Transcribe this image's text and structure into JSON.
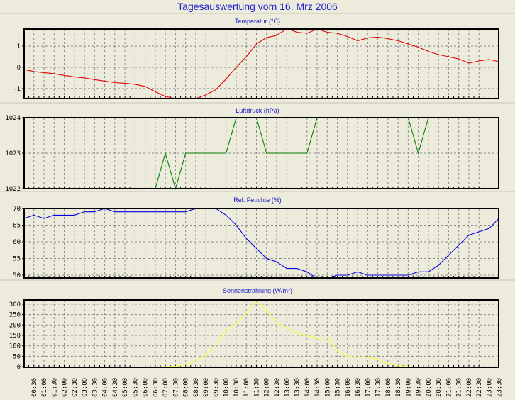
{
  "title": "Tagesauswertung vom 16. Mrz 2006",
  "x_labels": [
    "00:30",
    "01:00",
    "01:30",
    "02:00",
    "02:30",
    "03:00",
    "03:30",
    "04:00",
    "04:30",
    "05:00",
    "05:30",
    "06:00",
    "06:30",
    "07:00",
    "07:30",
    "08:00",
    "08:30",
    "09:00",
    "09:30",
    "10:00",
    "10:30",
    "11:00",
    "11:30",
    "12:00",
    "12:30",
    "13:00",
    "13:30",
    "14:00",
    "14:30",
    "15:00",
    "15:30",
    "16:00",
    "16:30",
    "17:00",
    "17:30",
    "18:00",
    "18:30",
    "19:00",
    "19:30",
    "20:00",
    "20:30",
    "21:00",
    "21:30",
    "22:00",
    "22:30",
    "23:00",
    "23:30"
  ],
  "chart_data": [
    {
      "type": "line",
      "title": "Temperatur (°C)",
      "color": "#e00000",
      "ylim": [
        -1.47,
        1.8
      ],
      "yticks": [
        1,
        0,
        -1
      ],
      "ytick_labels": [
        "1",
        "0",
        "-1"
      ],
      "x": "half-hour steps 00:00-23:30",
      "grid": true,
      "values": [
        -0.1,
        -0.2,
        -0.25,
        -0.3,
        -0.38,
        -0.45,
        -0.5,
        -0.58,
        -0.65,
        -0.72,
        -0.75,
        -0.8,
        -0.9,
        -1.15,
        -1.37,
        -1.47,
        -1.47,
        -1.47,
        -1.3,
        -1.05,
        -0.55,
        0,
        0.5,
        1.1,
        1.4,
        1.5,
        1.82,
        1.65,
        1.6,
        1.8,
        1.65,
        1.6,
        1.45,
        1.25,
        1.38,
        1.42,
        1.35,
        1.25,
        1.1,
        0.95,
        0.75,
        0.6,
        0.5,
        0.4,
        0.2,
        0.3,
        0.37,
        0.27
      ]
    },
    {
      "type": "line",
      "title": "Luftdruck (hPa)",
      "color": "#008000",
      "ylim": [
        1022,
        1024
      ],
      "yticks": [
        1024,
        1023,
        1022
      ],
      "ytick_labels": [
        "1024",
        "1023",
        "1022"
      ],
      "grid": true,
      "values": [
        1022,
        1022,
        1022,
        1022,
        1022,
        1022,
        1022,
        1022,
        1022,
        1022,
        1022,
        1022,
        1022,
        1022,
        1023,
        1022,
        1023,
        1023,
        1023,
        1023,
        1023,
        1024,
        1024,
        1024,
        1023,
        1023,
        1023,
        1023,
        1023,
        1024,
        1024,
        1024,
        1024,
        1024,
        1024,
        1024,
        1024,
        1024,
        1024,
        1023,
        1024,
        1024,
        1024,
        1024,
        1024,
        1024,
        1024,
        1024
      ]
    },
    {
      "type": "line",
      "title": "Rel. Feuchte (%)",
      "color": "#0000e0",
      "ylim": [
        49.15,
        70
      ],
      "yticks": [
        70,
        65,
        60,
        55,
        50
      ],
      "ytick_labels": [
        "70",
        "65",
        "60",
        "55",
        "50"
      ],
      "grid": true,
      "values": [
        67,
        68,
        67,
        68,
        68,
        68,
        69,
        69,
        70,
        69,
        69,
        69,
        69,
        69,
        69,
        69,
        69,
        70,
        70,
        70,
        68,
        65,
        61,
        58,
        55,
        54,
        52,
        52,
        51,
        49,
        49,
        50,
        50,
        51,
        50,
        50,
        50,
        50,
        50,
        51,
        51,
        53,
        56,
        59,
        62,
        63,
        64,
        67
      ]
    },
    {
      "type": "line",
      "title": "Sonnenstrahlung (W/m²)",
      "color": "#ffff40",
      "ylim": [
        -3,
        320
      ],
      "yticks": [
        300,
        250,
        200,
        150,
        100,
        50,
        0
      ],
      "ytick_labels": [
        "300",
        "250",
        "200",
        "150",
        "100",
        "50",
        "0"
      ],
      "grid": true,
      "values": [
        null,
        null,
        null,
        null,
        null,
        null,
        null,
        null,
        null,
        null,
        null,
        null,
        null,
        null,
        0,
        2,
        8,
        30,
        55,
        105,
        175,
        205,
        255,
        318,
        272,
        210,
        185,
        160,
        150,
        135,
        138,
        75,
        50,
        45,
        45,
        35,
        15,
        5,
        0,
        null,
        null,
        null,
        null,
        null,
        null,
        null,
        null,
        null
      ]
    }
  ]
}
